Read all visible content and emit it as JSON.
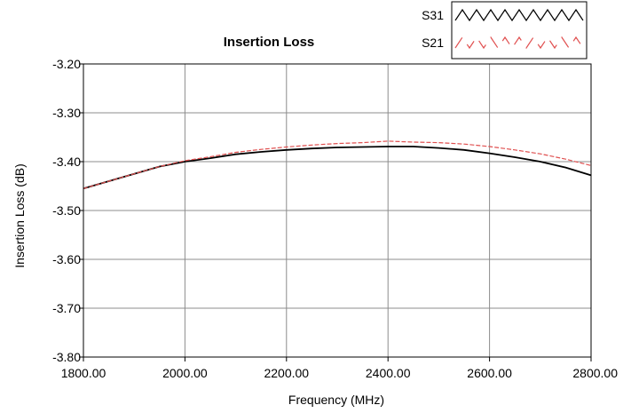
{
  "chart_data": {
    "type": "line",
    "title": "Insertion Loss",
    "xlabel": "Frequency (MHz)",
    "ylabel": "Insertion Loss (dB)",
    "xlim": [
      1800,
      2800
    ],
    "ylim": [
      -3.8,
      -3.2
    ],
    "x_ticks": [
      1800,
      2000,
      2200,
      2400,
      2600,
      2800
    ],
    "x_tick_labels": [
      "1800.00",
      "2000.00",
      "2200.00",
      "2400.00",
      "2600.00",
      "2800.00"
    ],
    "y_ticks": [
      -3.2,
      -3.3,
      -3.4,
      -3.5,
      -3.6,
      -3.7,
      -3.8
    ],
    "y_tick_labels": [
      "-3.20",
      "-3.30",
      "-3.40",
      "-3.50",
      "-3.60",
      "-3.70",
      "-3.80"
    ],
    "grid": true,
    "legend_position": "top-right",
    "series": [
      {
        "name": "S31",
        "color": "#000000",
        "style": "solid",
        "x": [
          1800,
          1850,
          1900,
          1950,
          2000,
          2050,
          2100,
          2150,
          2200,
          2250,
          2300,
          2350,
          2400,
          2450,
          2500,
          2550,
          2600,
          2650,
          2700,
          2750,
          2800
        ],
        "values": [
          -3.455,
          -3.44,
          -3.425,
          -3.41,
          -3.4,
          -3.393,
          -3.385,
          -3.38,
          -3.376,
          -3.373,
          -3.371,
          -3.37,
          -3.369,
          -3.369,
          -3.372,
          -3.376,
          -3.383,
          -3.391,
          -3.4,
          -3.412,
          -3.428
        ]
      },
      {
        "name": "S21",
        "color": "#e05050",
        "style": "dashed",
        "x": [
          1800,
          1850,
          1900,
          1950,
          2000,
          2050,
          2100,
          2150,
          2200,
          2250,
          2300,
          2350,
          2400,
          2450,
          2500,
          2550,
          2600,
          2650,
          2700,
          2750,
          2800
        ],
        "values": [
          -3.455,
          -3.44,
          -3.425,
          -3.41,
          -3.398,
          -3.39,
          -3.381,
          -3.375,
          -3.37,
          -3.366,
          -3.363,
          -3.361,
          -3.358,
          -3.36,
          -3.361,
          -3.364,
          -3.369,
          -3.376,
          -3.384,
          -3.395,
          -3.408
        ]
      }
    ]
  }
}
